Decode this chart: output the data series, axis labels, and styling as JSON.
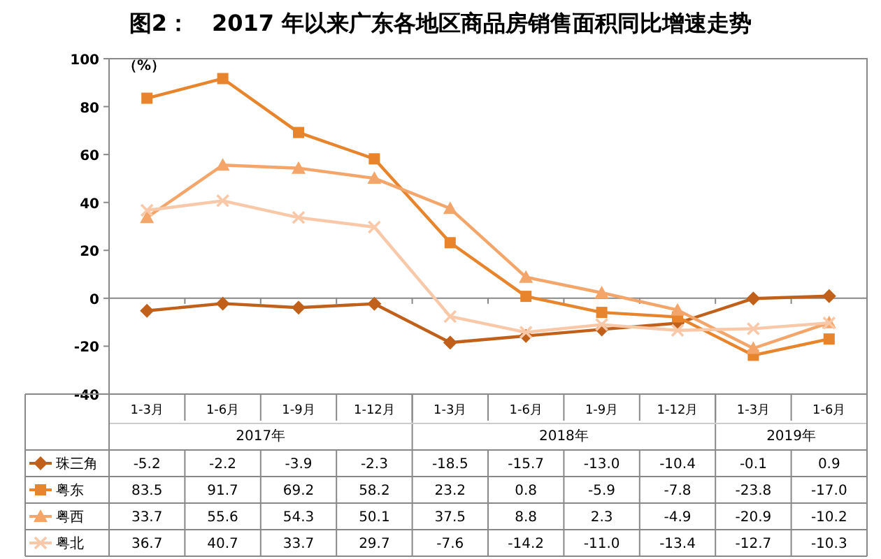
{
  "chart_data": {
    "type": "line",
    "title": "图2：　2017 年以来广东各地区商品房销售面积同比增速走势",
    "ylabel": "（%）",
    "categories": [
      "1-3月",
      "1-6月",
      "1-9月",
      "1-12月",
      "1-3月",
      "1-6月",
      "1-9月",
      "1-12月",
      "1-3月",
      "1-6月"
    ],
    "annotations": [
      "2017年",
      "2018年",
      "2019年"
    ],
    "ylim": [
      -40,
      100
    ],
    "yticks": [
      -40,
      -20,
      0,
      20,
      40,
      60,
      80,
      100
    ],
    "ref_lines": [
      {
        "axis": "y",
        "value": 0
      }
    ],
    "legend": "bottom",
    "series": [
      {
        "name": "珠三角",
        "color": "#c0601a",
        "marker": "diamond",
        "values": [
          -5.2,
          -2.2,
          -3.9,
          -2.3,
          -18.5,
          -15.7,
          -13.0,
          -10.4,
          -0.1,
          0.9
        ],
        "value_labels": [
          "-5.2",
          "-2.2",
          "-3.9",
          "-2.3",
          "-18.5",
          "-15.7",
          "-13.0",
          "-10.4",
          "-0.1",
          "0.9"
        ]
      },
      {
        "name": "粤东",
        "color": "#e8842c",
        "marker": "square",
        "values": [
          83.5,
          91.7,
          69.2,
          58.2,
          23.2,
          0.8,
          -5.9,
          -7.8,
          -23.8,
          -17.0
        ],
        "value_labels": [
          "83.5",
          "91.7",
          "69.2",
          "58.2",
          "23.2",
          "0.8",
          "-5.9",
          "-7.8",
          "-23.8",
          "-17.0"
        ]
      },
      {
        "name": "粤西",
        "color": "#f4a56a",
        "marker": "triangle",
        "values": [
          33.7,
          55.6,
          54.3,
          50.1,
          37.5,
          8.8,
          2.3,
          -4.9,
          -20.9,
          -10.2
        ],
        "value_labels": [
          "33.7",
          "55.6",
          "54.3",
          "50.1",
          "37.5",
          "8.8",
          "2.3",
          "-4.9",
          "-20.9",
          "-10.2"
        ]
      },
      {
        "name": "粤北",
        "color": "#f8c8a8",
        "marker": "cross",
        "values": [
          36.7,
          40.7,
          33.7,
          29.7,
          -7.6,
          -14.2,
          -11.0,
          -13.4,
          -12.7,
          -10.3
        ],
        "value_labels": [
          "36.7",
          "40.7",
          "33.7",
          "29.7",
          "-7.6",
          "-14.2",
          "-11.0",
          "-13.4",
          "-12.7",
          "-10.3"
        ]
      }
    ]
  }
}
